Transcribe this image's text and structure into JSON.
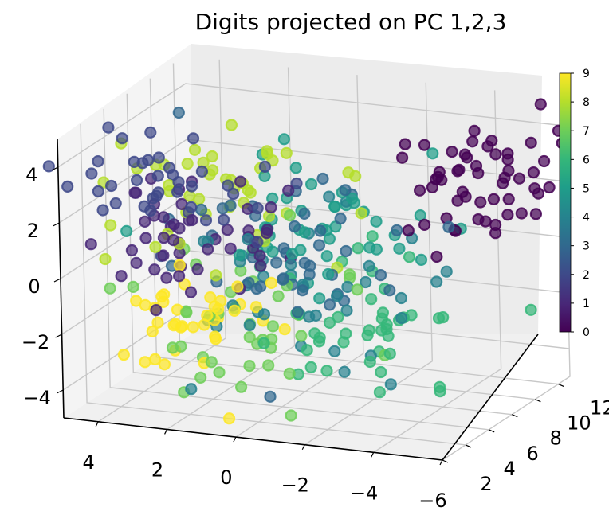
{
  "chart_data": {
    "type": "scatter",
    "title": "Digits projected on PC 1,2,3",
    "x_ticks": [
      "4",
      "2",
      "0",
      "−2",
      "−4",
      "−6"
    ],
    "y_ticks": [
      "2",
      "4",
      "6",
      "8",
      "10",
      "12"
    ],
    "z_ticks": [
      "−4",
      "−2",
      "0",
      "2",
      "4"
    ],
    "colorbar": {
      "min": 0,
      "max": 9,
      "ticks": [
        "0",
        "1",
        "2",
        "3",
        "4",
        "5",
        "6",
        "7",
        "8",
        "9"
      ],
      "colormap": "viridis"
    },
    "series_note": "",
    "clusters": [
      {
        "label": 0,
        "center": [
          -5.0,
          9.0,
          3.0
        ],
        "spread": [
          1.2,
          2.0,
          1.0
        ],
        "count": 55
      },
      {
        "label": 1,
        "center": [
          1.5,
          3.5,
          1.5
        ],
        "spread": [
          1.5,
          1.0,
          1.2
        ],
        "count": 50
      },
      {
        "label": 2,
        "center": [
          2.5,
          3.0,
          3.5
        ],
        "spread": [
          1.5,
          1.2,
          0.8
        ],
        "count": 40
      },
      {
        "label": 3,
        "center": [
          0.0,
          5.0,
          1.0
        ],
        "spread": [
          1.8,
          1.5,
          1.5
        ],
        "count": 45
      },
      {
        "label": 4,
        "center": [
          -1.0,
          6.0,
          -1.0
        ],
        "spread": [
          1.8,
          1.5,
          1.5
        ],
        "count": 40
      },
      {
        "label": 5,
        "center": [
          -1.5,
          6.5,
          1.5
        ],
        "spread": [
          1.8,
          1.5,
          1.5
        ],
        "count": 45
      },
      {
        "label": 6,
        "center": [
          -2.0,
          7.5,
          -2.0
        ],
        "spread": [
          1.5,
          1.5,
          1.2
        ],
        "count": 45
      },
      {
        "label": 7,
        "center": [
          0.5,
          6.0,
          -2.0
        ],
        "spread": [
          1.5,
          1.5,
          1.2
        ],
        "count": 40
      },
      {
        "label": 8,
        "center": [
          1.0,
          5.0,
          2.5
        ],
        "spread": [
          1.8,
          1.5,
          1.2
        ],
        "count": 45
      },
      {
        "label": 9,
        "center": [
          2.0,
          4.0,
          -1.5
        ],
        "spread": [
          1.5,
          1.2,
          1.2
        ],
        "count": 40
      }
    ]
  }
}
